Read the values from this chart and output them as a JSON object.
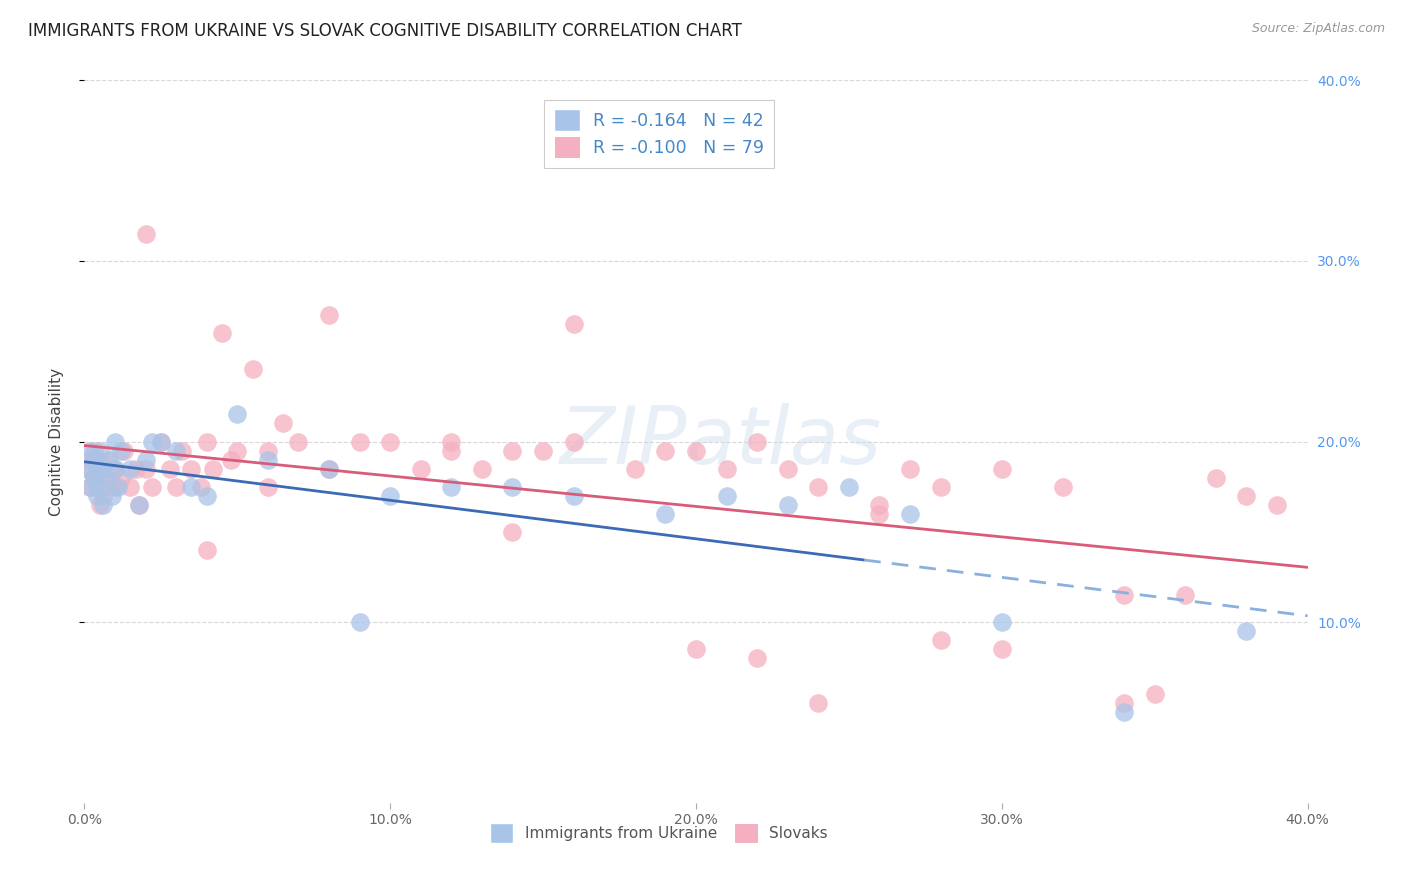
{
  "title": "IMMIGRANTS FROM UKRAINE VS SLOVAK COGNITIVE DISABILITY CORRELATION CHART",
  "source": "Source: ZipAtlas.com",
  "ylabel": "Cognitive Disability",
  "xlim": [
    0.0,
    0.4
  ],
  "ylim": [
    0.0,
    0.4
  ],
  "ukraine_color": "#a8c4e8",
  "slovak_color": "#f4afc0",
  "ukraine_line_color": "#3c6ab5",
  "slovak_line_color": "#d95b7a",
  "ukraine_line_dashed_color": "#8ab0de",
  "background_color": "#ffffff",
  "grid_color": "#d8d8d8",
  "watermark": "ZIPatlas",
  "ukraine_R": -0.164,
  "ukraine_N": 42,
  "slovak_R": -0.1,
  "slovak_N": 79,
  "ukraine_x": [
    0.001,
    0.002,
    0.002,
    0.003,
    0.003,
    0.004,
    0.004,
    0.005,
    0.005,
    0.006,
    0.006,
    0.007,
    0.008,
    0.009,
    0.01,
    0.01,
    0.011,
    0.012,
    0.015,
    0.018,
    0.02,
    0.022,
    0.025,
    0.03,
    0.035,
    0.04,
    0.05,
    0.06,
    0.08,
    0.09,
    0.1,
    0.12,
    0.14,
    0.16,
    0.19,
    0.21,
    0.23,
    0.25,
    0.27,
    0.3,
    0.34,
    0.38
  ],
  "ukraine_y": [
    0.185,
    0.195,
    0.175,
    0.19,
    0.18,
    0.185,
    0.17,
    0.195,
    0.175,
    0.185,
    0.165,
    0.18,
    0.19,
    0.17,
    0.185,
    0.2,
    0.175,
    0.195,
    0.185,
    0.165,
    0.19,
    0.2,
    0.2,
    0.195,
    0.175,
    0.17,
    0.215,
    0.19,
    0.185,
    0.1,
    0.17,
    0.175,
    0.175,
    0.17,
    0.16,
    0.17,
    0.165,
    0.175,
    0.16,
    0.1,
    0.05,
    0.095
  ],
  "slovak_x": [
    0.001,
    0.002,
    0.002,
    0.003,
    0.003,
    0.004,
    0.004,
    0.005,
    0.005,
    0.006,
    0.006,
    0.007,
    0.008,
    0.009,
    0.01,
    0.01,
    0.012,
    0.013,
    0.015,
    0.017,
    0.018,
    0.02,
    0.022,
    0.025,
    0.028,
    0.03,
    0.032,
    0.035,
    0.038,
    0.04,
    0.042,
    0.045,
    0.048,
    0.05,
    0.055,
    0.06,
    0.065,
    0.07,
    0.08,
    0.09,
    0.1,
    0.11,
    0.12,
    0.13,
    0.14,
    0.15,
    0.16,
    0.18,
    0.19,
    0.2,
    0.21,
    0.22,
    0.23,
    0.24,
    0.26,
    0.27,
    0.28,
    0.3,
    0.32,
    0.34,
    0.36,
    0.37,
    0.38,
    0.39,
    0.04,
    0.12,
    0.2,
    0.24,
    0.28,
    0.35,
    0.02,
    0.06,
    0.14,
    0.26,
    0.34,
    0.08,
    0.16,
    0.22,
    0.3
  ],
  "slovak_y": [
    0.19,
    0.185,
    0.175,
    0.195,
    0.18,
    0.185,
    0.175,
    0.19,
    0.165,
    0.185,
    0.17,
    0.18,
    0.19,
    0.175,
    0.185,
    0.175,
    0.18,
    0.195,
    0.175,
    0.185,
    0.165,
    0.185,
    0.175,
    0.2,
    0.185,
    0.175,
    0.195,
    0.185,
    0.175,
    0.2,
    0.185,
    0.26,
    0.19,
    0.195,
    0.24,
    0.195,
    0.21,
    0.2,
    0.185,
    0.2,
    0.2,
    0.185,
    0.2,
    0.185,
    0.195,
    0.195,
    0.2,
    0.185,
    0.195,
    0.195,
    0.185,
    0.2,
    0.185,
    0.175,
    0.165,
    0.185,
    0.175,
    0.185,
    0.175,
    0.115,
    0.115,
    0.18,
    0.17,
    0.165,
    0.14,
    0.195,
    0.085,
    0.055,
    0.09,
    0.06,
    0.315,
    0.175,
    0.15,
    0.16,
    0.055,
    0.27,
    0.265,
    0.08,
    0.085
  ],
  "ukraine_line_solid_xmax": 0.255,
  "title_fontsize": 12,
  "axis_label_fontsize": 11,
  "tick_fontsize": 10
}
